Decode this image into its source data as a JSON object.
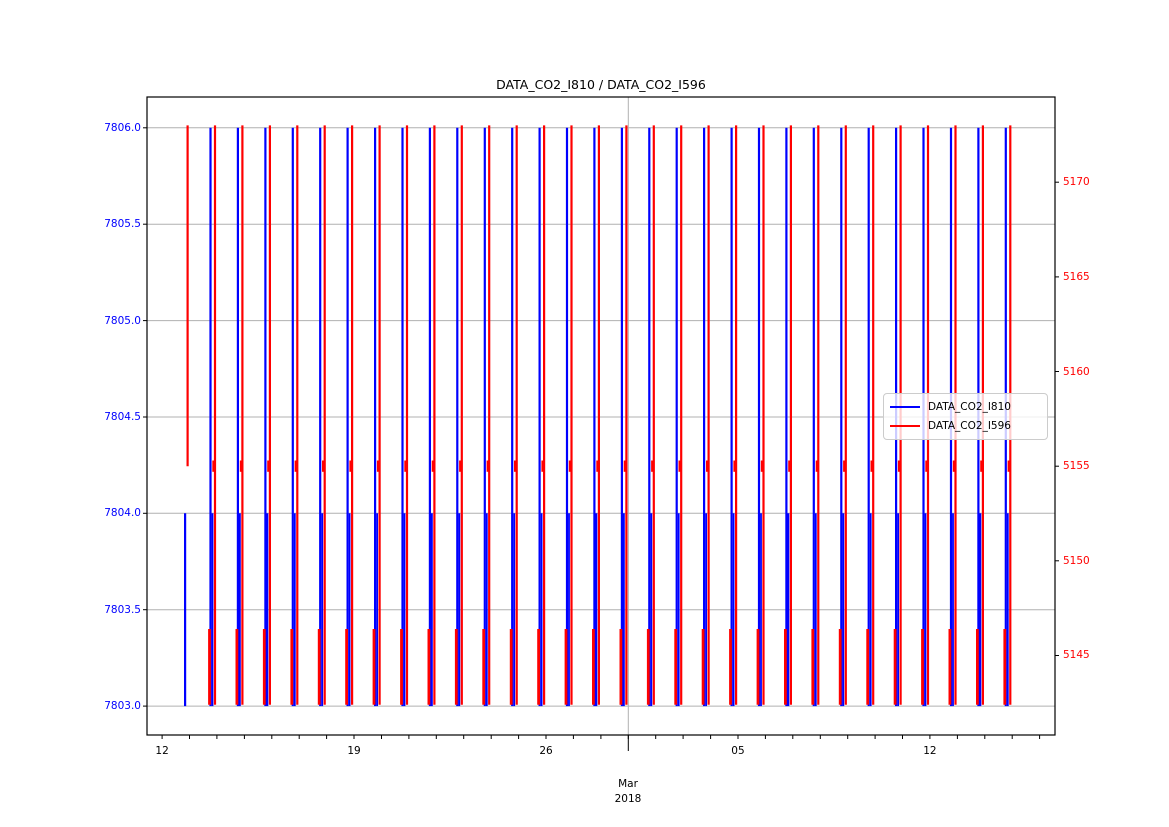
{
  "chart_data": {
    "type": "line",
    "title": "DATA_CO2_I810 / DATA_CO2_I596",
    "grid": {
      "horizontal": true,
      "vertical_month_boundary": true,
      "color": "#b0b0b0"
    },
    "legend": {
      "position": "center-right",
      "entries": [
        {
          "label": "DATA_CO2_I810",
          "color": "#0000ff"
        },
        {
          "label": "DATA_CO2_I596",
          "color": "#ff0000"
        }
      ]
    },
    "x_axis": {
      "unit": "days (day 0 = first labeled tick, Feb 12)",
      "range": [
        -0.55,
        32.56
      ],
      "major_tick_days": [
        0,
        7,
        14,
        21,
        28
      ],
      "major_tick_labels": [
        "12",
        "19",
        "26",
        "05",
        "12"
      ],
      "minor_tick_step_days": 1,
      "month_boundary_day": 17,
      "month_label": "Mar",
      "year_label": "2018"
    },
    "left_axis": {
      "series": "DATA_CO2_I810",
      "color": "#0000ff",
      "ticks": [
        7803.0,
        7803.5,
        7804.0,
        7804.5,
        7805.0,
        7805.5,
        7806.0
      ],
      "tick_labels": [
        "7803.0",
        "7803.5",
        "7804.0",
        "7804.5",
        "7805.0",
        "7805.5",
        "7806.0"
      ],
      "range": [
        7802.85,
        7806.16
      ]
    },
    "right_axis": {
      "series": "DATA_CO2_I596",
      "color": "#ff0000",
      "ticks": [
        5145,
        5150,
        5155,
        5160,
        5165,
        5170
      ],
      "tick_labels": [
        "5145",
        "5150",
        "5155",
        "5160",
        "5165",
        "5170"
      ],
      "range": [
        5140.8,
        5174.5
      ]
    },
    "series": [
      {
        "name": "DATA_CO2_I810",
        "color": "#0000ff",
        "axis": "left",
        "description": "daily square-wave spikes between 7806.0 and 7803.0 with a secondary drop line from 7804.0",
        "spike_top": 7806.0,
        "spike_bottom": 7803.0,
        "second_line_top": 7804.0,
        "first_cluster_top": 7804.0
      },
      {
        "name": "DATA_CO2_I596",
        "color": "#ff0000",
        "axis": "right",
        "description": "daily square-wave spikes between ~5173 and ~5142.4 with dwell notch at 5155 and dwell band 5146.4-5142.4",
        "spike_top": 5173.0,
        "spike_bottom": 5142.4,
        "notch_span": [
          5155.3,
          5154.7
        ],
        "dwell_top": 5146.4,
        "first_cluster_bottom": 5155.0
      }
    ],
    "clusters": {
      "count": 31,
      "first_day": 0.766,
      "interval_days": 1.0,
      "red_day_offset": 0.164,
      "blue_second_day_offset": 0.073,
      "red_notch_day_offset": 0.11,
      "red_dwell_day_offset": -0.037
    }
  }
}
